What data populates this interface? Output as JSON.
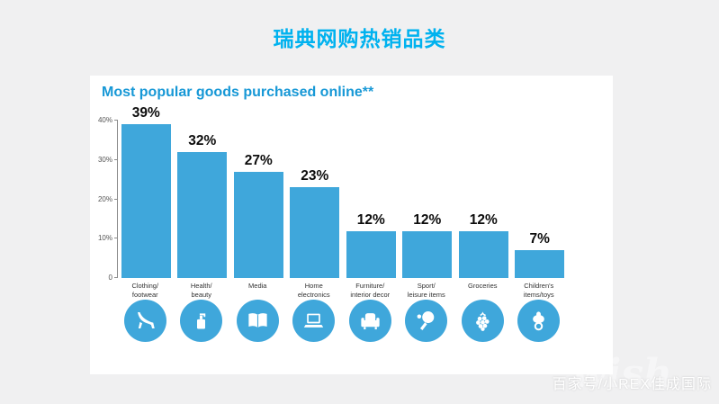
{
  "page": {
    "title": "瑞典网购热销品类",
    "watermark": "百家号/小REX佳成国际",
    "watermark_logo": "wish"
  },
  "colors": {
    "page_title": "#00b2ef",
    "chart_title": "#1798d6",
    "bar": "#3fa7db",
    "icon_circle": "#3fa7db",
    "card_background": "#ffffff",
    "page_background": "#f0f0f1"
  },
  "chart_data": {
    "type": "bar",
    "title": "Most popular goods purchased online**",
    "categories": [
      [
        "Clothing/",
        "footwear"
      ],
      [
        "Health/",
        "beauty"
      ],
      [
        "Media"
      ],
      [
        "Home",
        "electronics"
      ],
      [
        "Furniture/",
        "interior decor"
      ],
      [
        "Sport/",
        "leisure items"
      ],
      [
        "Groceries"
      ],
      [
        "Children's",
        "items/toys"
      ]
    ],
    "values": [
      39,
      32,
      27,
      23,
      12,
      12,
      12,
      7
    ],
    "value_labels": [
      "39%",
      "32%",
      "27%",
      "23%",
      "12%",
      "12%",
      "12%",
      "7%"
    ],
    "ylim": [
      0,
      40
    ],
    "y_ticks": [
      {
        "label": "40%",
        "value": 40
      },
      {
        "label": "30%",
        "value": 30
      },
      {
        "label": "20%",
        "value": 20
      },
      {
        "label": "10%",
        "value": 10
      },
      {
        "label": "0",
        "value": 0
      }
    ],
    "grid": false,
    "legend": "none",
    "icons": [
      "high-heel-icon",
      "soap-dispenser-icon",
      "open-book-icon",
      "laptop-icon",
      "armchair-icon",
      "table-tennis-icon",
      "grapes-icon",
      "pacifier-icon"
    ]
  }
}
